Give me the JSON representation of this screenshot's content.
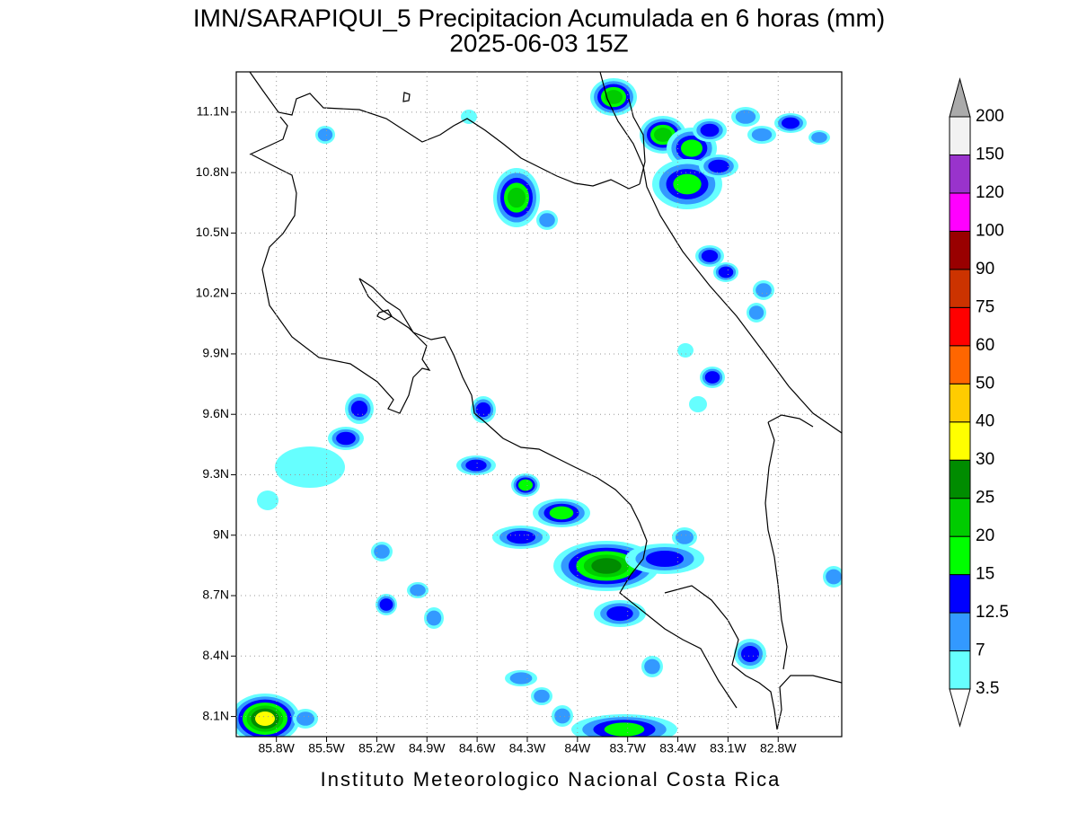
{
  "map": {
    "title": "IMN/SARAPIQUI_5 Precipitacion Acumulada en 6 horas (mm)",
    "subtitle": "2025-06-03 15Z",
    "footer": "Instituto Meteorologico Nacional Costa Rica",
    "lon_range": [
      -86.04,
      -82.42
    ],
    "lat_range": [
      8.0,
      11.3
    ],
    "lon_ticks": [
      {
        "value": -85.8,
        "label": "85.8W"
      },
      {
        "value": -85.5,
        "label": "85.5W"
      },
      {
        "value": -85.2,
        "label": "85.2W"
      },
      {
        "value": -84.9,
        "label": "84.9W"
      },
      {
        "value": -84.6,
        "label": "84.6W"
      },
      {
        "value": -84.3,
        "label": "84.3W"
      },
      {
        "value": -84,
        "label": "84W"
      },
      {
        "value": -83.7,
        "label": "83.7W"
      },
      {
        "value": -83.4,
        "label": "83.4W"
      },
      {
        "value": -83.1,
        "label": "83.1W"
      },
      {
        "value": -82.8,
        "label": "82.8W"
      }
    ],
    "lat_ticks": [
      {
        "value": 8.1,
        "label": "8.1N"
      },
      {
        "value": 8.4,
        "label": "8.4N"
      },
      {
        "value": 8.7,
        "label": "8.7N"
      },
      {
        "value": 9,
        "label": "9N"
      },
      {
        "value": 9.3,
        "label": "9.3N"
      },
      {
        "value": 9.6,
        "label": "9.6N"
      },
      {
        "value": 9.9,
        "label": "9.9N"
      },
      {
        "value": 10.2,
        "label": "10.2N"
      },
      {
        "value": 10.5,
        "label": "10.5N"
      },
      {
        "value": 10.8,
        "label": "10.8N"
      },
      {
        "value": 11.1,
        "label": "11.1N"
      }
    ],
    "colorbar": {
      "levels": [
        3.5,
        7,
        12.5,
        15,
        20,
        25,
        30,
        40,
        50,
        60,
        75,
        90,
        100,
        120,
        150,
        200
      ],
      "colors": [
        "#66ffff",
        "#3399ff",
        "#0000ff",
        "#00ff00",
        "#00cc00",
        "#008c00",
        "#ffff00",
        "#ffcc00",
        "#ff6600",
        "#ff0000",
        "#cc3300",
        "#990000",
        "#ff00ff",
        "#9933cc",
        "#f2f2f2"
      ],
      "under_color": "#ffffff",
      "over_color": "#aaaaaa"
    }
  }
}
